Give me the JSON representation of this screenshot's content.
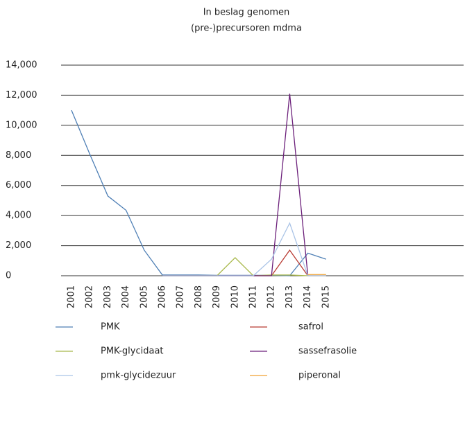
{
  "chart_data": {
    "type": "line",
    "title": "In beslag genomen",
    "subtitle": "(pre-)precursoren mdma",
    "categories": [
      "2001",
      "2002",
      "2003",
      "2004",
      "2005",
      "2006",
      "2007",
      "2008",
      "2009",
      "2010",
      "2011",
      "2012",
      "2013",
      "2014",
      "2015"
    ],
    "series": [
      {
        "name": "PMK",
        "color": "#4e7fb5",
        "values": [
          11000,
          8100,
          5300,
          4350,
          1700,
          50,
          50,
          50,
          30,
          30,
          30,
          30,
          0,
          1500,
          1100
        ]
      },
      {
        "name": "safrol",
        "color": "#b83a32",
        "values": [
          null,
          null,
          null,
          null,
          null,
          0,
          0,
          0,
          0,
          0,
          0,
          0,
          1700,
          0,
          0
        ]
      },
      {
        "name": "PMK-glycidaat",
        "color": "#a8b84a",
        "values": [
          null,
          null,
          null,
          null,
          null,
          0,
          0,
          0,
          0,
          1200,
          0,
          50,
          50,
          0,
          0
        ]
      },
      {
        "name": "sassefrasolie",
        "color": "#6b1f7a",
        "values": [
          null,
          null,
          null,
          null,
          null,
          0,
          0,
          0,
          0,
          0,
          0,
          0,
          12100,
          0,
          null
        ]
      },
      {
        "name": "pmk-glycidezuur",
        "color": "#a9c3e6",
        "values": [
          null,
          null,
          null,
          null,
          null,
          0,
          0,
          0,
          0,
          0,
          0,
          1100,
          3500,
          0,
          0
        ]
      },
      {
        "name": "piperonal",
        "color": "#f0a030",
        "values": [
          null,
          null,
          null,
          null,
          null,
          null,
          null,
          null,
          null,
          null,
          null,
          null,
          null,
          80,
          80
        ]
      }
    ],
    "ylim": [
      0,
      14000
    ],
    "yticks": [
      0,
      {
        "value": 2000,
        "label": "2,000"
      },
      {
        "value": 4000,
        "label": "4,000"
      },
      {
        "value": 6000,
        "label": "6,000"
      },
      {
        "value": 8000,
        "label": "8,000"
      },
      {
        "value": 10000,
        "label": "10,000"
      },
      {
        "value": 12000,
        "label": "12,000"
      },
      {
        "value": 14000,
        "label": "14,000"
      }
    ],
    "grid": true
  }
}
